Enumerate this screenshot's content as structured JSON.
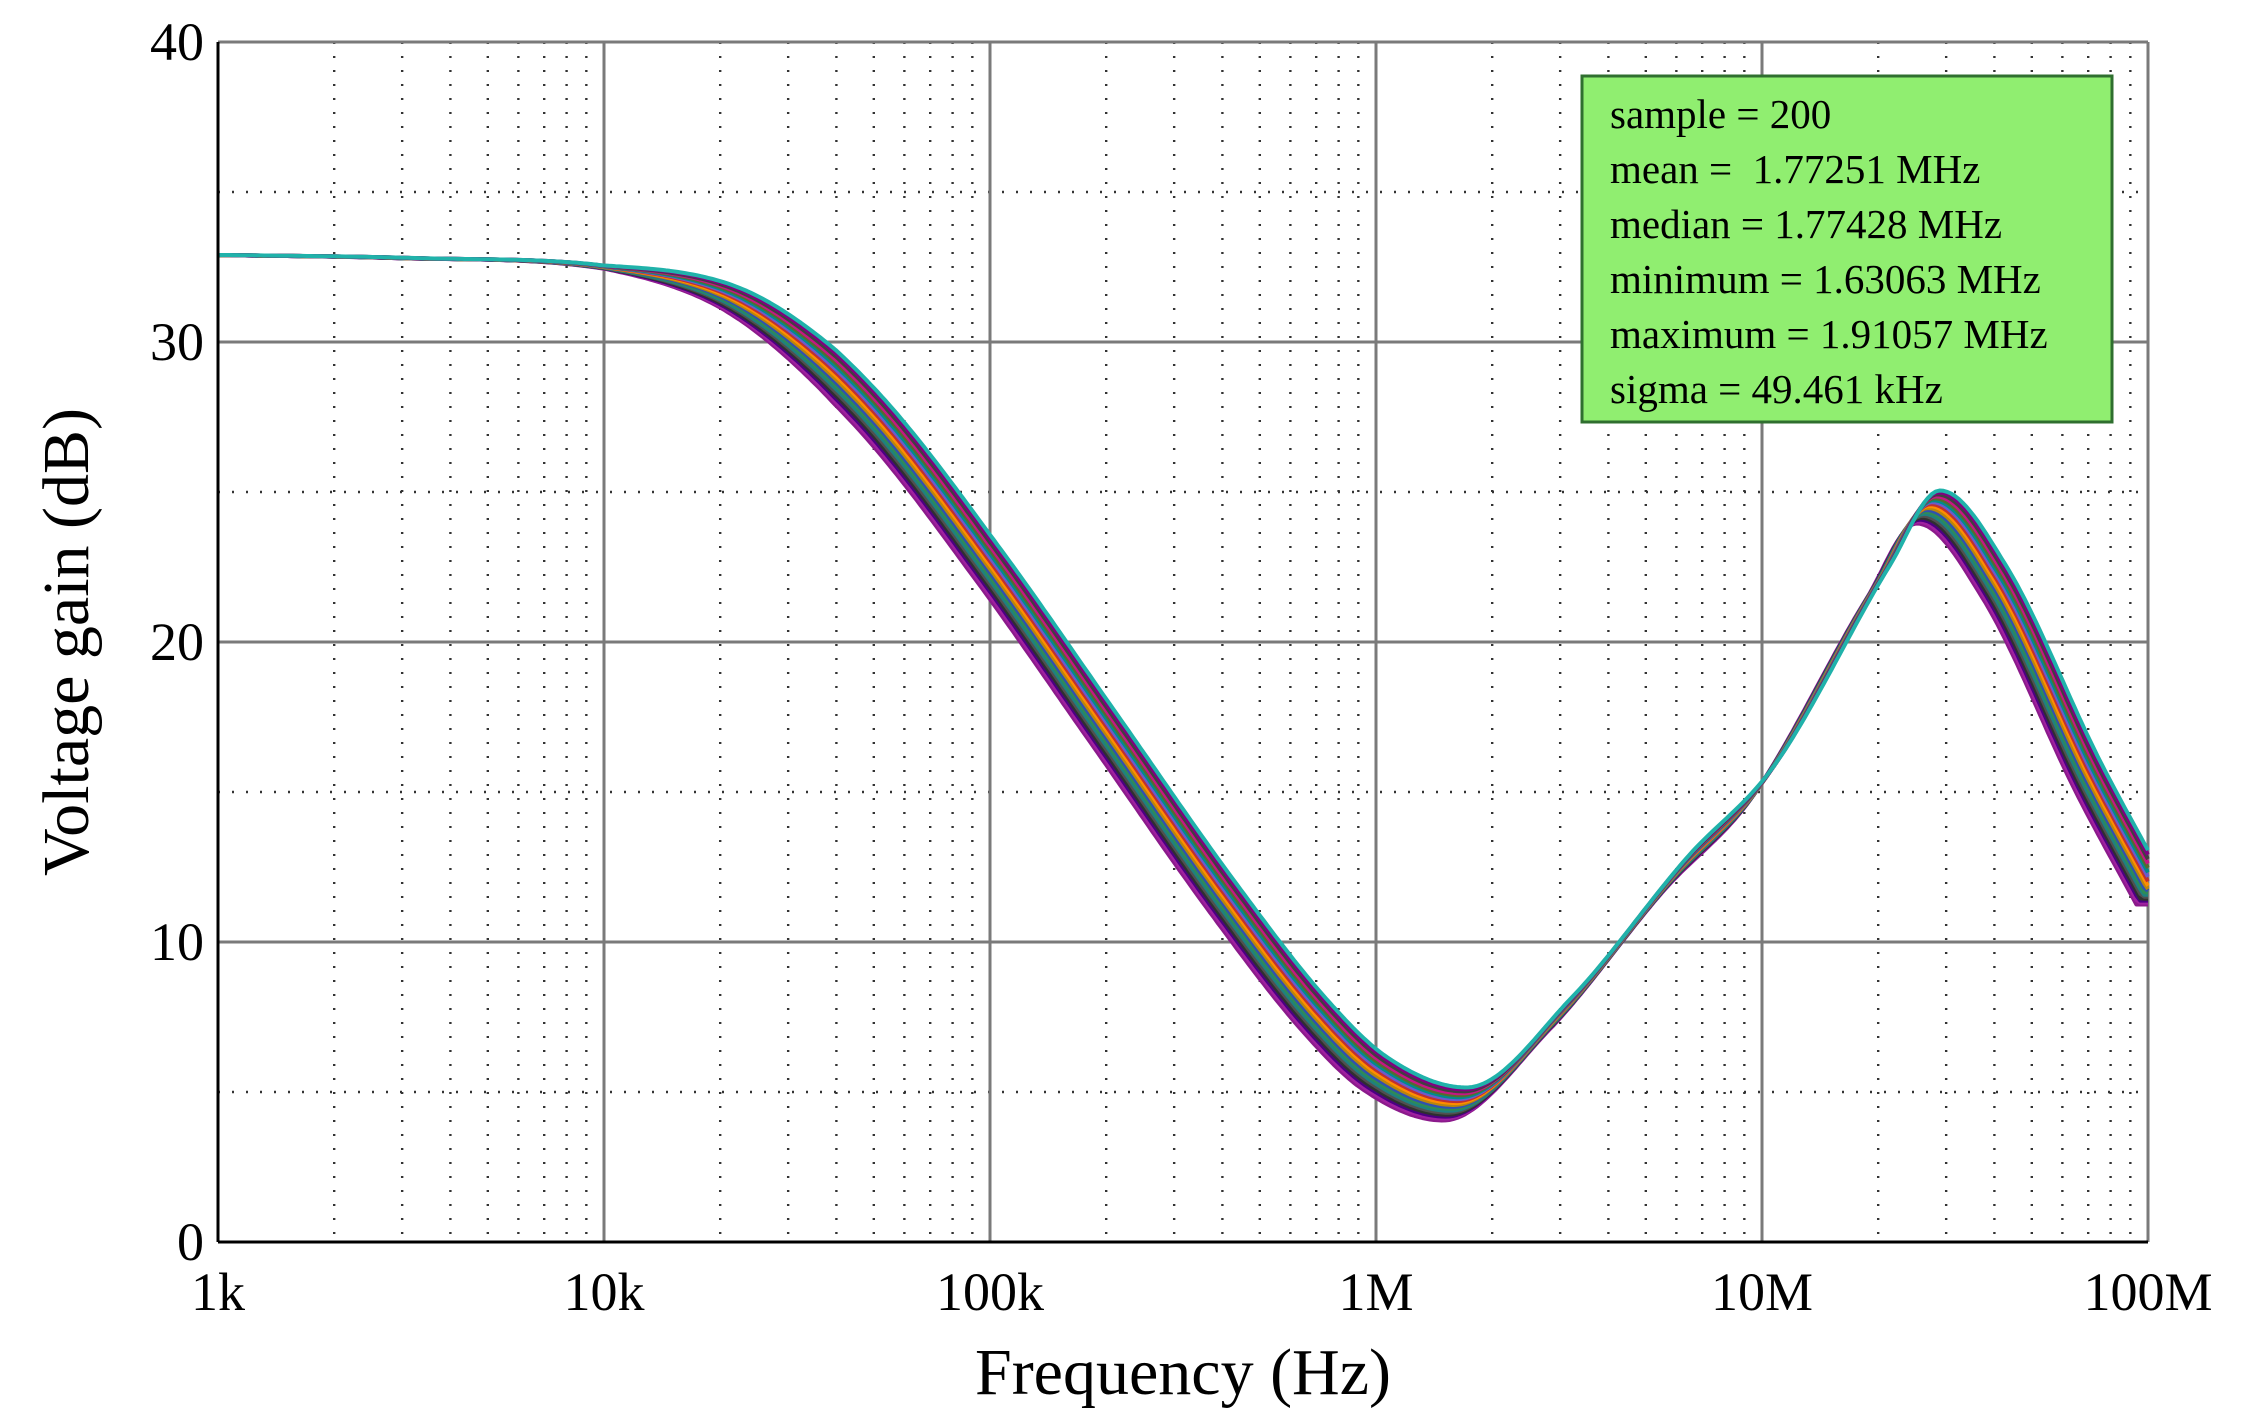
{
  "chart_data": {
    "type": "line",
    "xlabel": "Frequency (Hz)",
    "ylabel": "Voltage gain (dB)",
    "x_scale": "log",
    "xlim": [
      1000,
      100000000
    ],
    "ylim": [
      0,
      40
    ],
    "x_ticks": [
      {
        "value": 1000,
        "label": "1k"
      },
      {
        "value": 10000,
        "label": "10k"
      },
      {
        "value": 100000,
        "label": "100k"
      },
      {
        "value": 1000000,
        "label": "1M"
      },
      {
        "value": 10000000,
        "label": "10M"
      },
      {
        "value": 100000000,
        "label": "100M"
      }
    ],
    "y_ticks": [
      {
        "value": 0,
        "label": "0"
      },
      {
        "value": 10,
        "label": "10"
      },
      {
        "value": 20,
        "label": "20"
      },
      {
        "value": 30,
        "label": "30"
      },
      {
        "value": 40,
        "label": "40"
      }
    ],
    "grid": true,
    "curve_x": [
      1000,
      3000,
      10000,
      20000,
      30000,
      50000,
      100000,
      200000,
      400000,
      700000,
      1000000,
      1600000,
      3000000,
      6000000,
      10000000,
      20000000,
      27000000,
      40000000,
      70000000,
      100000000
    ],
    "mean_curve_y": [
      32.9,
      32.8,
      32.5,
      31.6,
      30.2,
      27.5,
      22.5,
      17.0,
      11.5,
      7.5,
      5.6,
      4.6,
      7.6,
      12.3,
      15.3,
      22.0,
      24.5,
      22.0,
      15.5,
      11.8
    ],
    "band_spread_db": 1.1,
    "series_colors": [
      "#8b1a8b",
      "#a020a0",
      "#4b0082",
      "#303030",
      "#505050",
      "#1e8080",
      "#2e8b57",
      "#3050b0",
      "#b8860b",
      "#ff8c00",
      "#c03030",
      "#6a5acd",
      "#008b8b",
      "#556b2f",
      "#c71585",
      "#404040",
      "#800080",
      "#20b2aa"
    ],
    "stats_box": {
      "background": "#90ee70",
      "lines": [
        "sample = 200",
        "mean =  1.77251 MHz",
        "median = 1.77428 MHz",
        "minimum = 1.63063 MHz",
        "maximum = 1.91057 MHz",
        "sigma = 49.461 kHz"
      ]
    }
  }
}
